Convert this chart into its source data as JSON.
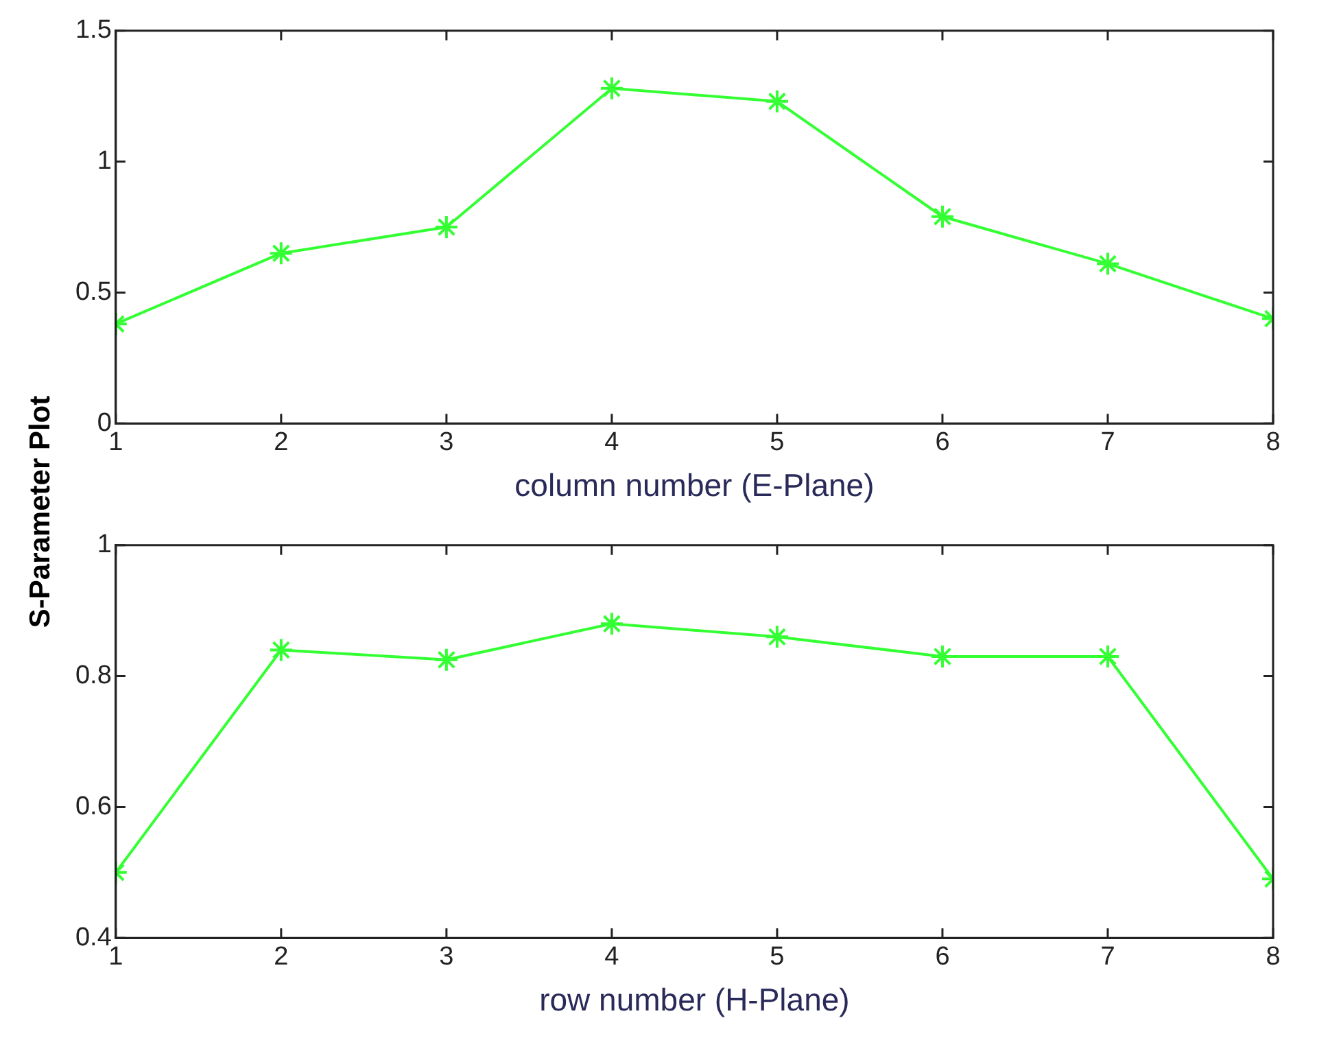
{
  "chart_data": [
    {
      "type": "line",
      "ylabel": "S-Parameter Plot",
      "xlabel": "column number (E-Plane)",
      "x": [
        1,
        2,
        3,
        4,
        5,
        6,
        7,
        8
      ],
      "series": [
        {
          "color": "#33ff33",
          "values": [
            0.38,
            0.65,
            0.75,
            1.28,
            1.23,
            0.79,
            0.61,
            0.4
          ]
        }
      ],
      "xlim": [
        1,
        8
      ],
      "xticks": [
        1,
        2,
        3,
        4,
        5,
        6,
        7,
        8
      ],
      "ylim": [
        0,
        1.5
      ],
      "yticks": [
        0,
        0.5,
        1,
        1.5
      ],
      "grid": false,
      "legend": false,
      "marker": "cross",
      "line_style": "solid"
    },
    {
      "type": "line",
      "xlabel": "row number (H-Plane)",
      "x": [
        1,
        2,
        3,
        4,
        5,
        6,
        7,
        8
      ],
      "series": [
        {
          "color": "#33ff33",
          "values": [
            0.5,
            0.84,
            0.825,
            0.88,
            0.86,
            0.83,
            0.83,
            0.49
          ]
        }
      ],
      "xlim": [
        1,
        8
      ],
      "xticks": [
        1,
        2,
        3,
        4,
        5,
        6,
        7,
        8
      ],
      "ylim": [
        0.4,
        1
      ],
      "yticks": [
        0.4,
        0.6,
        0.8,
        1
      ],
      "grid": false,
      "legend": false,
      "marker": "cross",
      "line_style": "solid"
    }
  ]
}
